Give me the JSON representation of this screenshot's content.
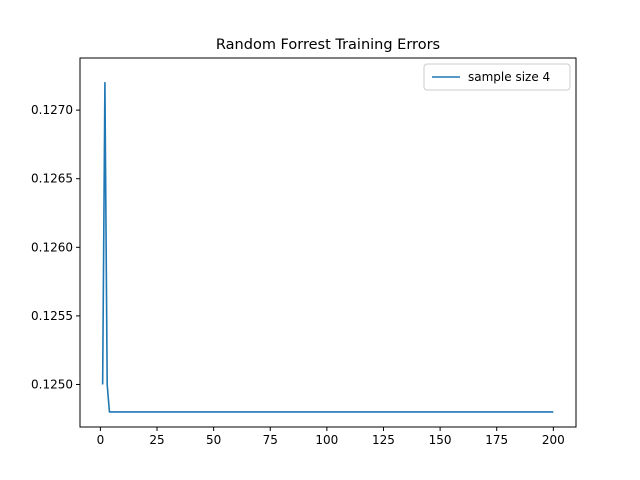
{
  "chart_data": {
    "type": "line",
    "title": "Random Forrest Training Errors",
    "xlabel": "",
    "ylabel": "",
    "xlim": [
      -9.0,
      210.0
    ],
    "ylim": [
      0.12469,
      0.12738
    ],
    "xticks": [
      0,
      25,
      50,
      75,
      100,
      125,
      150,
      175,
      200
    ],
    "xtick_labels": [
      "0",
      "25",
      "50",
      "75",
      "100",
      "125",
      "150",
      "175",
      "200"
    ],
    "yticks": [
      0.125,
      0.1255,
      0.126,
      0.1265,
      0.127
    ],
    "ytick_labels": [
      "0.1250",
      "0.1255",
      "0.1260",
      "0.1265",
      "0.1270"
    ],
    "grid": false,
    "legend_position": "top-right",
    "series": [
      {
        "name": "sample size 4",
        "color": "#1f77b4",
        "x": [
          1,
          2,
          3,
          4,
          200
        ],
        "y": [
          0.125,
          0.1272,
          0.125,
          0.1248,
          0.1248
        ]
      }
    ]
  }
}
